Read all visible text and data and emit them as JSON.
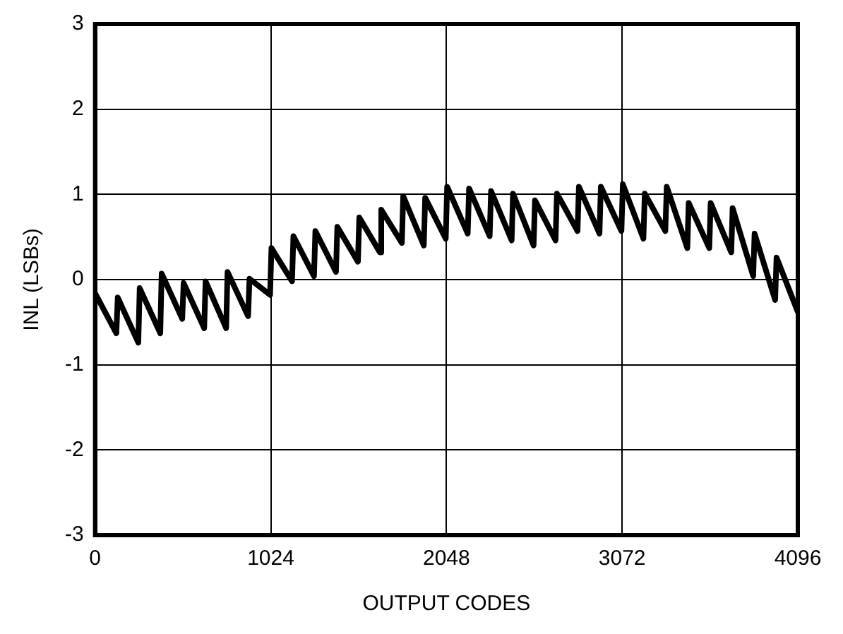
{
  "chart_data": {
    "type": "line",
    "xlabel": "OUTPUT CODES",
    "ylabel": "INL (LSBs)",
    "x": [
      0,
      124,
      132,
      252,
      260,
      380,
      388,
      508,
      516,
      636,
      644,
      764,
      772,
      892,
      900,
      1020,
      1028,
      1148,
      1156,
      1276,
      1284,
      1404,
      1412,
      1532,
      1540,
      1660,
      1668,
      1788,
      1796,
      1916,
      1924,
      2044,
      2052,
      2172,
      2180,
      2300,
      2308,
      2428,
      2436,
      2556,
      2564,
      2684,
      2692,
      2812,
      2820,
      2940,
      2948,
      3068,
      3076,
      3196,
      3204,
      3324,
      3332,
      3452,
      3460,
      3580,
      3588,
      3708,
      3716,
      3836,
      3844,
      3964,
      3972,
      4096
    ],
    "series": [
      {
        "color": "#000000",
        "values": [
          -0.16,
          -0.63,
          -0.21,
          -0.74,
          -0.1,
          -0.63,
          0.07,
          -0.46,
          -0.04,
          -0.57,
          -0.02,
          -0.57,
          0.09,
          -0.43,
          0.01,
          -0.18,
          0.37,
          -0.02,
          0.51,
          0.04,
          0.57,
          0.09,
          0.62,
          0.21,
          0.73,
          0.32,
          0.82,
          0.43,
          0.98,
          0.4,
          0.96,
          0.48,
          1.09,
          0.54,
          1.07,
          0.51,
          1.04,
          0.46,
          1.01,
          0.4,
          0.93,
          0.46,
          1.01,
          0.57,
          1.09,
          0.54,
          1.09,
          0.57,
          1.12,
          0.48,
          1.01,
          0.57,
          1.09,
          0.37,
          0.9,
          0.37,
          0.9,
          0.32,
          0.84,
          0.04,
          0.54,
          -0.24,
          0.26,
          -0.38
        ]
      }
    ],
    "xlim": [
      0,
      4096
    ],
    "xticks": [
      0,
      1024,
      2048,
      3072,
      4096
    ],
    "ylim": [
      -3,
      3
    ],
    "yticks": [
      -3,
      -2,
      -1,
      0,
      1,
      2,
      3
    ],
    "grid": true,
    "legend": false,
    "marker": "none",
    "line_style": "solid"
  }
}
